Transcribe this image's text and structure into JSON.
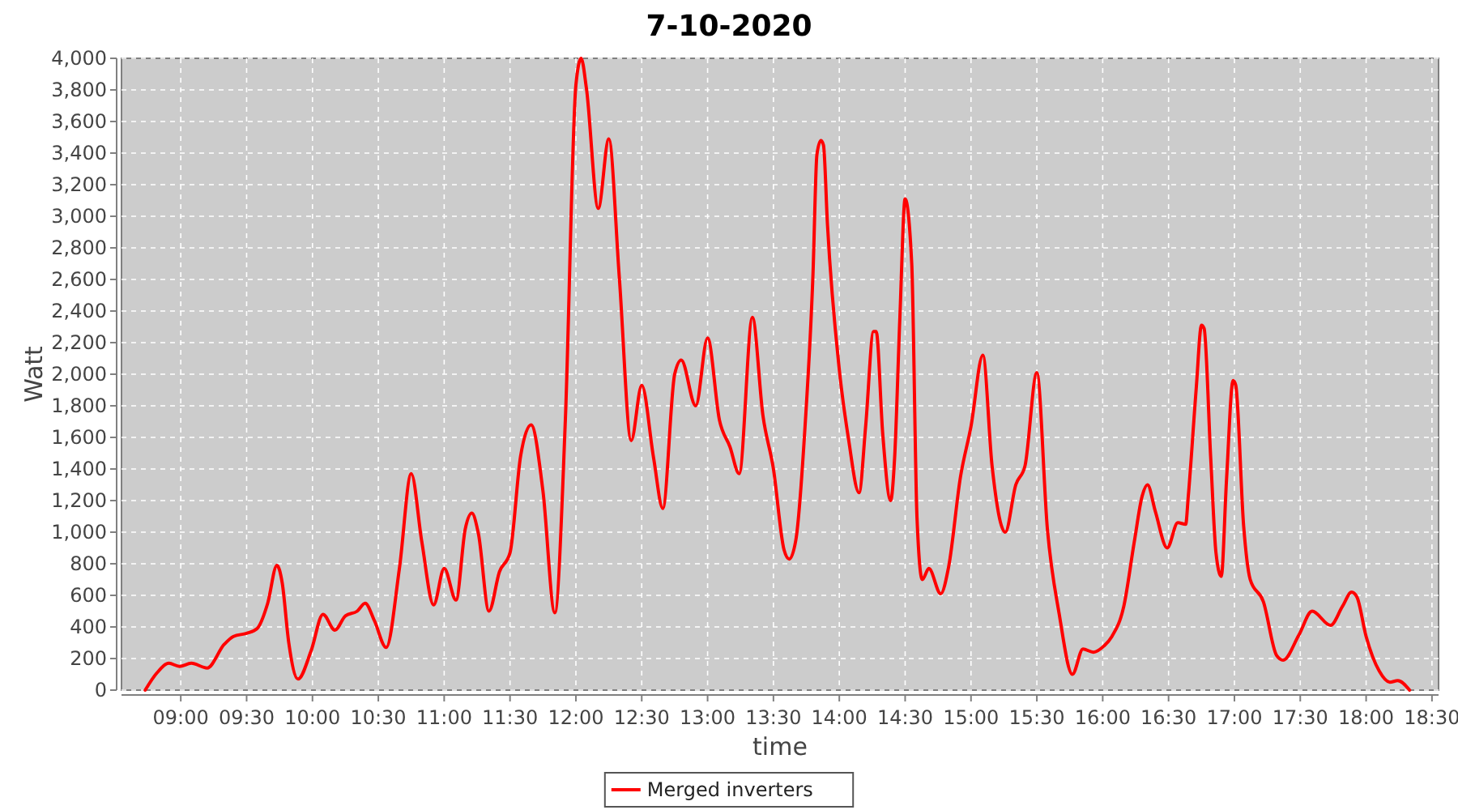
{
  "chart_data": {
    "type": "line",
    "title": "7-10-2020",
    "xlabel": "time",
    "ylabel": "Watt",
    "x": [
      8.73,
      8.82,
      8.91,
      8.99,
      9.08,
      9.2,
      9.33,
      9.4,
      9.5,
      9.58,
      9.66,
      9.73,
      9.77,
      9.82,
      9.89,
      9.99,
      10.08,
      10.17,
      10.25,
      10.34,
      10.4,
      10.47,
      10.56,
      10.66,
      10.75,
      10.83,
      10.92,
      11.0,
      11.09,
      11.16,
      11.21,
      11.26,
      11.34,
      11.42,
      11.5,
      11.58,
      11.66,
      11.75,
      11.84,
      11.92,
      12.0,
      12.04,
      12.08,
      12.17,
      12.25,
      12.33,
      12.42,
      12.5,
      12.59,
      12.66,
      12.75,
      12.8,
      12.91,
      13.0,
      13.09,
      13.17,
      13.24,
      13.34,
      13.42,
      13.5,
      13.58,
      13.62,
      13.67,
      13.74,
      13.8,
      13.83,
      13.86,
      13.88,
      13.91,
      14.0,
      14.07,
      14.15,
      14.2,
      14.26,
      14.28,
      14.33,
      14.39,
      14.42,
      14.46,
      14.5,
      14.55,
      14.59,
      14.63,
      14.68,
      14.77,
      14.83,
      14.92,
      15.0,
      15.09,
      15.16,
      15.26,
      15.34,
      15.41,
      15.5,
      15.58,
      15.67,
      15.77,
      15.85,
      15.93,
      16.01,
      16.07,
      16.16,
      16.24,
      16.3,
      16.34,
      16.4,
      16.49,
      16.57,
      16.63,
      16.65,
      16.71,
      16.75,
      16.77,
      16.82,
      16.86,
      16.9,
      16.94,
      16.99,
      17.01,
      17.07,
      17.12,
      17.22,
      17.32,
      17.37,
      17.49,
      17.59,
      17.73,
      17.82,
      17.89,
      17.93,
      18.0,
      18.1,
      18.18,
      18.24,
      18.33
    ],
    "series": [
      {
        "name": "Merged inverters",
        "color": "#ff0000",
        "values": [
          0,
          110,
          170,
          150,
          170,
          140,
          290,
          340,
          360,
          390,
          550,
          790,
          680,
          300,
          70,
          250,
          480,
          380,
          470,
          500,
          550,
          440,
          270,
          770,
          1370,
          940,
          540,
          770,
          570,
          1020,
          1120,
          990,
          500,
          750,
          870,
          1480,
          1680,
          1260,
          490,
          1710,
          3830,
          4000,
          3810,
          3050,
          3490,
          2610,
          1580,
          1930,
          1470,
          1150,
          2000,
          2090,
          1800,
          2230,
          1710,
          1540,
          1370,
          2360,
          1740,
          1400,
          890,
          830,
          950,
          1670,
          2630,
          3390,
          3480,
          3450,
          2950,
          2030,
          1590,
          1250,
          1670,
          2270,
          2270,
          1620,
          1200,
          1470,
          2360,
          3110,
          2700,
          1090,
          700,
          770,
          610,
          780,
          1350,
          1670,
          2120,
          1420,
          1000,
          1300,
          1420,
          2010,
          1020,
          480,
          100,
          260,
          240,
          280,
          340,
          530,
          940,
          1230,
          1300,
          1130,
          900,
          1060,
          1050,
          1230,
          1910,
          2310,
          2290,
          1470,
          870,
          720,
          1330,
          1960,
          1930,
          1040,
          700,
          560,
          220,
          190,
          350,
          500,
          410,
          530,
          620,
          590,
          340,
          120,
          50,
          60,
          0
        ]
      }
    ],
    "xlim": [
      8.55,
      18.55
    ],
    "xticks": [
      {
        "value": 9,
        "label": "09:00"
      },
      {
        "value": 9.5,
        "label": "09:30"
      },
      {
        "value": 10,
        "label": "10:00"
      },
      {
        "value": 10.5,
        "label": "10:30"
      },
      {
        "value": 11,
        "label": "11:00"
      },
      {
        "value": 11.5,
        "label": "11:30"
      },
      {
        "value": 12,
        "label": "12:00"
      },
      {
        "value": 12.5,
        "label": "12:30"
      },
      {
        "value": 13,
        "label": "13:00"
      },
      {
        "value": 13.5,
        "label": "13:30"
      },
      {
        "value": 14,
        "label": "14:00"
      },
      {
        "value": 14.5,
        "label": "14:30"
      },
      {
        "value": 15,
        "label": "15:00"
      },
      {
        "value": 15.5,
        "label": "15:30"
      },
      {
        "value": 16,
        "label": "16:00"
      },
      {
        "value": 16.5,
        "label": "16:30"
      },
      {
        "value": 17,
        "label": "17:00"
      },
      {
        "value": 17.5,
        "label": "17:30"
      },
      {
        "value": 18,
        "label": "18:00"
      },
      {
        "value": 18.5,
        "label": "18:30"
      }
    ],
    "ylim": [
      0,
      4000
    ],
    "yticks": [
      0,
      200,
      400,
      600,
      800,
      {
        "value": 1000,
        "label": "1,000"
      },
      {
        "value": 1200,
        "label": "1,200"
      },
      {
        "value": 1400,
        "label": "1,400"
      },
      {
        "value": 1600,
        "label": "1,600"
      },
      {
        "value": 1800,
        "label": "1,800"
      },
      {
        "value": 2000,
        "label": "2,000"
      },
      {
        "value": 2200,
        "label": "2,200"
      },
      {
        "value": 2400,
        "label": "2,400"
      },
      {
        "value": 2600,
        "label": "2,600"
      },
      {
        "value": 2800,
        "label": "2,800"
      },
      {
        "value": 3000,
        "label": "3,000"
      },
      {
        "value": 3200,
        "label": "3,200"
      },
      {
        "value": 3400,
        "label": "3,400"
      },
      {
        "value": 3600,
        "label": "3,600"
      },
      {
        "value": 3800,
        "label": "3,800"
      },
      {
        "value": 4000,
        "label": "4,000"
      }
    ],
    "grid": true,
    "legend": "bottom",
    "line_style": "solid"
  }
}
